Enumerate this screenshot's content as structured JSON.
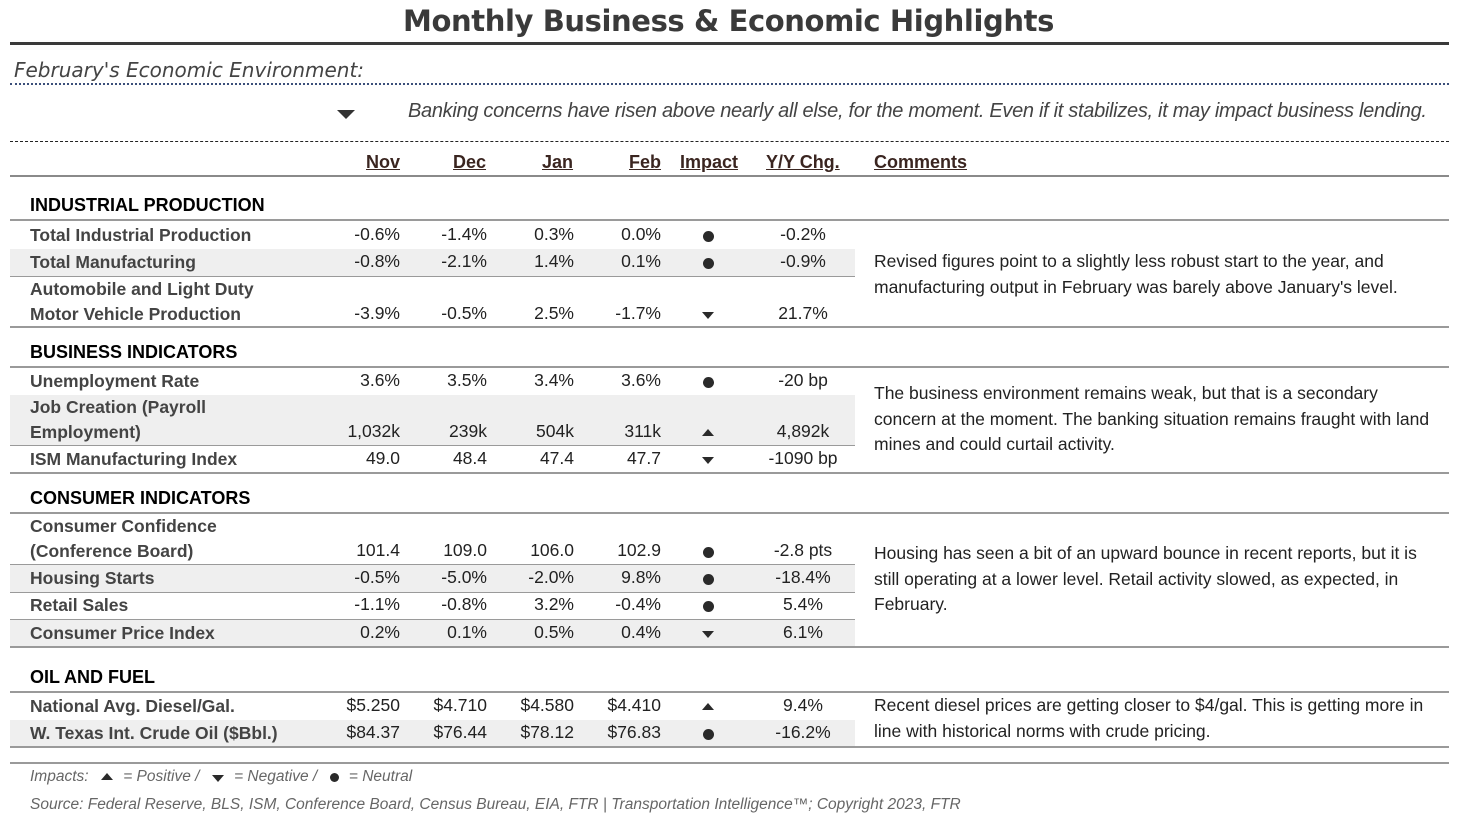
{
  "title": "Monthly Business & Economic Highlights",
  "subtitle": "February's Economic Environment:",
  "headline": {
    "icon": "down-triangle-icon",
    "text": "Banking concerns have risen above nearly all else, for the moment. Even if it stabilizes, it may impact business lending."
  },
  "headers": {
    "nov": "Nov",
    "dec": "Dec",
    "jan": "Jan",
    "feb": "Feb",
    "impact": "Impact",
    "yoy": "Y/Y Chg.",
    "comments": "Comments"
  },
  "sections": [
    {
      "title": "INDUSTRIAL PRODUCTION",
      "rows": [
        {
          "label": "Total Industrial Production",
          "nov": "-0.6%",
          "dec": "-1.4%",
          "jan": "0.3%",
          "feb": "0.0%",
          "impact": "neutral",
          "yoy": "-0.2%"
        },
        {
          "label": "Total Manufacturing",
          "nov": "-0.8%",
          "dec": "-2.1%",
          "jan": "1.4%",
          "feb": "0.1%",
          "impact": "neutral",
          "yoy": "-0.9%"
        },
        {
          "label": "Automobile and Light Duty Motor Vehicle Production",
          "nov": "-3.9%",
          "dec": "-0.5%",
          "jan": "2.5%",
          "feb": "-1.7%",
          "impact": "negative",
          "yoy": "21.7%"
        }
      ],
      "comment": "Revised figures point to a slightly less robust start to the year, and manufacturing output in February was barely above  January's level."
    },
    {
      "title": "BUSINESS INDICATORS",
      "rows": [
        {
          "label": "Unemployment Rate",
          "nov": "3.6%",
          "dec": "3.5%",
          "jan": "3.4%",
          "feb": "3.6%",
          "impact": "neutral",
          "yoy": "-20 bp"
        },
        {
          "label": "Job Creation (Payroll Employment)",
          "nov": "1,032k",
          "dec": "239k",
          "jan": "504k",
          "feb": "311k",
          "impact": "positive",
          "yoy": "4,892k"
        },
        {
          "label": "ISM Manufacturing Index",
          "nov": "49.0",
          "dec": "48.4",
          "jan": "47.4",
          "feb": "47.7",
          "impact": "negative",
          "yoy": "-1090 bp"
        }
      ],
      "comment": "The business environment remains weak, but that is a secondary concern at the moment. The banking situation remains fraught with land mines and could curtail activity."
    },
    {
      "title": "CONSUMER INDICATORS",
      "rows": [
        {
          "label": "Consumer Confidence (Conference Board)",
          "nov": "101.4",
          "dec": "109.0",
          "jan": "106.0",
          "feb": "102.9",
          "impact": "neutral",
          "yoy": "-2.8 pts"
        },
        {
          "label": "Housing Starts",
          "nov": "-0.5%",
          "dec": "-5.0%",
          "jan": "-2.0%",
          "feb": "9.8%",
          "impact": "neutral",
          "yoy": "-18.4%"
        },
        {
          "label": "Retail Sales",
          "nov": "-1.1%",
          "dec": "-0.8%",
          "jan": "3.2%",
          "feb": "-0.4%",
          "impact": "neutral",
          "yoy": "5.4%"
        },
        {
          "label": "Consumer Price Index",
          "nov": "0.2%",
          "dec": "0.1%",
          "jan": "0.5%",
          "feb": "0.4%",
          "impact": "negative",
          "yoy": "6.1%"
        }
      ],
      "comment": "Housing has seen a bit of an upward bounce in recent reports, but it is still operating at a lower level. Retail activity slowed, as expected, in February."
    },
    {
      "title": "OIL AND FUEL",
      "rows": [
        {
          "label": "National Avg. Diesel/Gal.",
          "nov": "$5.250",
          "dec": "$4.710",
          "jan": "$4.580",
          "feb": "$4.410",
          "impact": "positive",
          "yoy": "9.4%"
        },
        {
          "label": "W. Texas Int. Crude Oil ($Bbl.)",
          "nov": "$84.37",
          "dec": "$76.44",
          "jan": "$78.12",
          "feb": "$76.83",
          "impact": "neutral",
          "yoy": "-16.2%"
        }
      ],
      "comment": "Recent diesel prices are getting closer to $4/gal. This is getting more in line with historical norms with crude pricing."
    }
  ],
  "legend": {
    "prefix": "Impacts:",
    "positive": "= Positive /",
    "negative": "= Negative /",
    "neutral": "= Neutral"
  },
  "source": "Source: Federal Reserve, BLS, ISM, Conference Board, Census Bureau, EIA, FTR | Transportation Intelligence™; Copyright 2023, FTR"
}
